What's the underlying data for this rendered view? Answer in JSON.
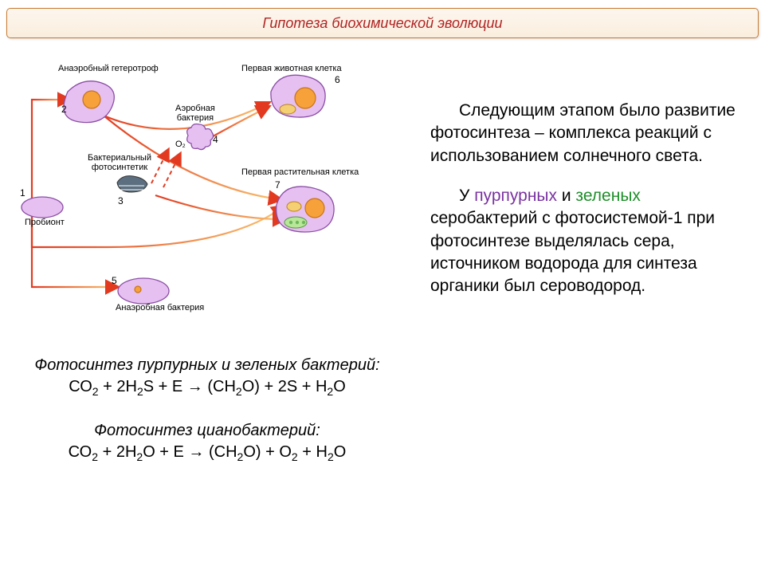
{
  "colors": {
    "title_text": "#b02424",
    "title_border": "#c97a2e",
    "purple_word": "#7a32a0",
    "green_word": "#1e8f2a",
    "cell_fill": "#e7c0f2",
    "cell_stroke": "#8a4ea5",
    "nucleus_fill": "#f6a13a",
    "nucleus_stroke": "#c87414",
    "mito_fill": "#f5cf74",
    "mito_stroke": "#b98116",
    "chloro_fill": "#b8e79a",
    "chloro_stroke": "#4f9a3d",
    "arrow": "#e23a20",
    "arrow_gradient_end": "#f9c26f",
    "dark_cell": "#5b6f80"
  },
  "title": "Гипотеза биохимической эволюции",
  "diagram": {
    "labels": {
      "probiont": "Пробионт",
      "anaerobic_heterotroph": "Анаэробный гетеротроф",
      "aerobic_bacterium": "Аэробная\nбактерия",
      "bacterial_photosynthetic": "Бактериальный\nфотосинтетик",
      "anaerobic_bacterium": "Анаэробная бактерия",
      "first_animal_cell": "Первая животная клетка",
      "first_plant_cell": "Первая растительная клетка",
      "o2": "O₂"
    },
    "numbers": [
      "1",
      "2",
      "3",
      "4",
      "5",
      "6",
      "7"
    ]
  },
  "equations": {
    "eq1_title": "Фотосинтез пурпурных и зеленых бактерий:",
    "eq1": "СО₂ + 2Н₂S + Е → (СН₂О) + 2S + Н₂О",
    "eq2_title": "Фотосинтез цианобактерий:",
    "eq2": "СО₂ + 2Н₂О + Е → (СН₂О) + О₂ + Н₂О"
  },
  "paragraphs": {
    "p1": "Следующим этапом было развитие фотосинтеза – комплекса реакций с использованием солнечного света.",
    "p2_a": "У ",
    "p2_purple": "пурпурных",
    "p2_b": " и ",
    "p2_green": "зеленых",
    "p2_c": " серобактерий с фотосистемой-1 при фотосинтезе выделялась сера, источником водорода для синтеза органики был сероводород."
  }
}
